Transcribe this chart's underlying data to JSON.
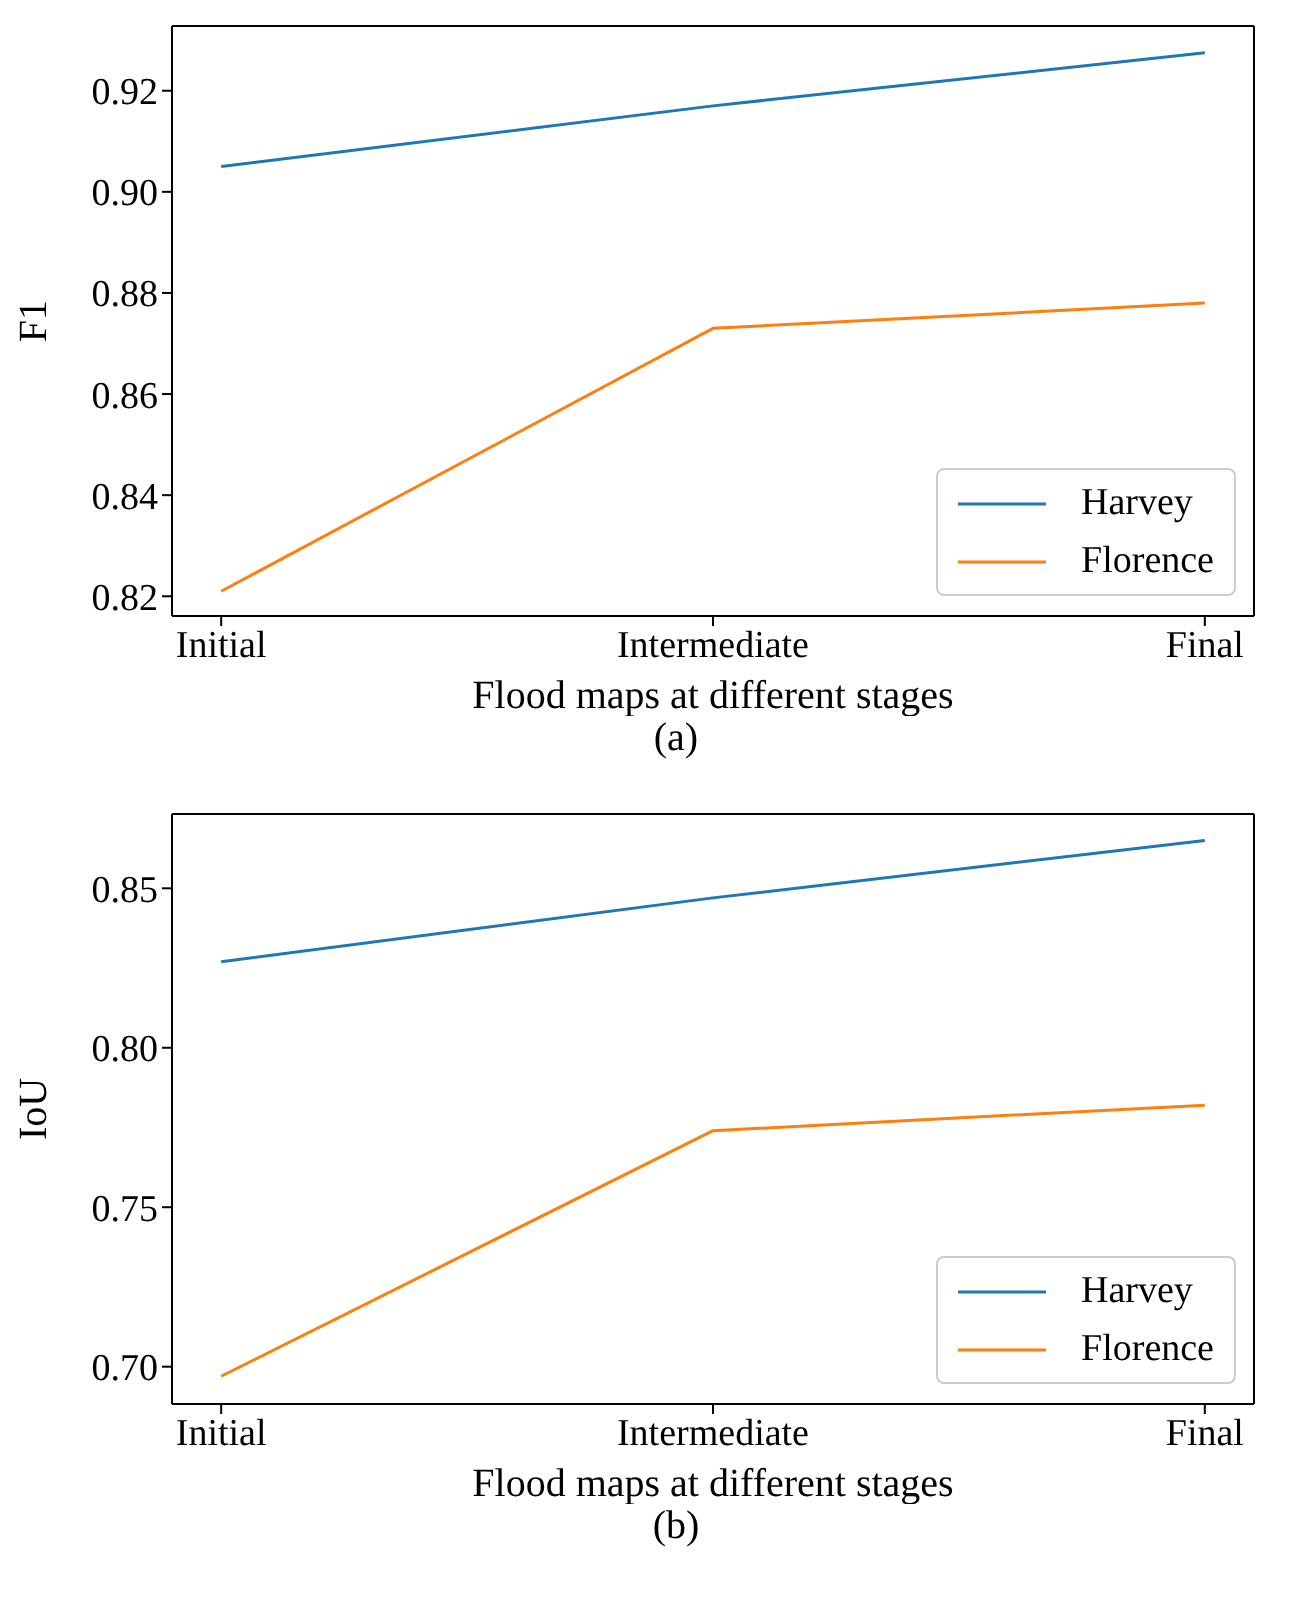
{
  "chart_data": [
    {
      "type": "line",
      "xlabel": "Flood maps at different stages",
      "ylabel": "F1",
      "annotations": [
        "(a)"
      ],
      "categories": [
        "Initial",
        "Intermediate",
        "Final"
      ],
      "series": [
        {
          "name": "Harvey",
          "color": "#1f77b4",
          "values": [
            0.905,
            0.917,
            0.9275
          ]
        },
        {
          "name": "Florence",
          "color": "#ff7f0e",
          "values": [
            0.821,
            0.873,
            0.878
          ]
        }
      ],
      "ylim": [
        0.8161,
        0.9328
      ],
      "yticks": [
        {
          "value": 0.82,
          "label": "0.82"
        },
        {
          "value": 0.84,
          "label": "0.84"
        },
        {
          "value": 0.86,
          "label": "0.86"
        },
        {
          "value": 0.88,
          "label": "0.88"
        },
        {
          "value": 0.9,
          "label": "0.90"
        },
        {
          "value": 0.92,
          "label": "0.92"
        }
      ],
      "grid": false,
      "legend": "bottom right",
      "marker": "none",
      "line_style": "solid"
    },
    {
      "type": "line",
      "xlabel": "Flood maps at different stages",
      "ylabel": "IoU",
      "annotations": [
        "(b)"
      ],
      "categories": [
        "Initial",
        "Intermediate",
        "Final"
      ],
      "series": [
        {
          "name": "Harvey",
          "color": "#1f77b4",
          "values": [
            0.827,
            0.847,
            0.865
          ]
        },
        {
          "name": "Florence",
          "color": "#ff7f0e",
          "values": [
            0.697,
            0.774,
            0.782
          ]
        }
      ],
      "ylim": [
        0.6883,
        0.8733
      ],
      "yticks": [
        {
          "value": 0.7,
          "label": "0.70"
        },
        {
          "value": 0.75,
          "label": "0.75"
        },
        {
          "value": 0.8,
          "label": "0.80"
        },
        {
          "value": 0.85,
          "label": "0.85"
        }
      ],
      "grid": false,
      "legend": "bottom right",
      "marker": "none",
      "line_style": "solid"
    }
  ]
}
